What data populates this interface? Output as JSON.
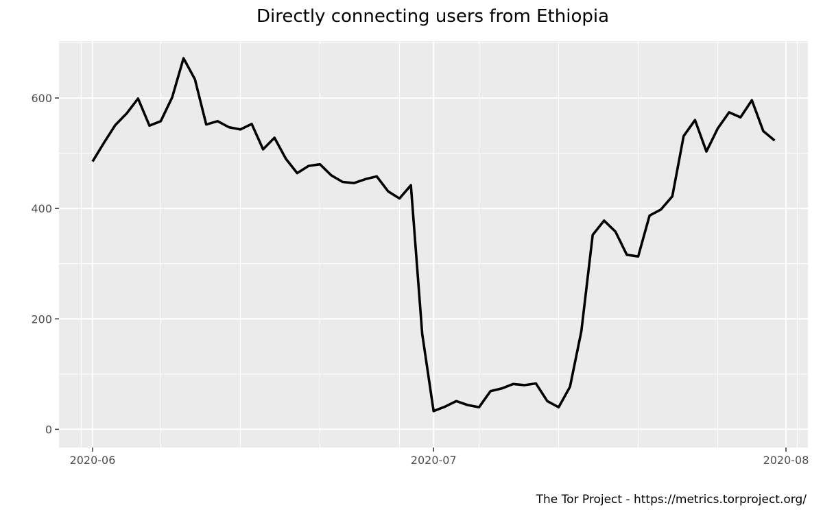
{
  "chart_data": {
    "type": "line",
    "title": "Directly connecting users from Ethiopia",
    "xlabel": "",
    "ylabel": "",
    "caption": "The Tor Project - https://metrics.torproject.org/",
    "x_ticks": [
      "2020-06-01",
      "2020-07-01",
      "2020-08-01"
    ],
    "x_tick_labels": [
      "2020-06",
      "2020-07",
      "2020-08"
    ],
    "y_ticks": [
      0,
      200,
      400,
      600
    ],
    "y_tick_labels": [
      "0",
      "200",
      "400",
      "600"
    ],
    "xlim": [
      "2019-05-30",
      "2020-08-03"
    ],
    "ylim": [
      -33,
      703
    ],
    "grid": true,
    "series": [
      {
        "color": "#000000",
        "x": [
          "2020-06-01",
          "2020-06-02",
          "2020-06-03",
          "2020-06-04",
          "2020-06-05",
          "2020-06-06",
          "2020-06-07",
          "2020-06-08",
          "2020-06-09",
          "2020-06-10",
          "2020-06-11",
          "2020-06-12",
          "2020-06-13",
          "2020-06-14",
          "2020-06-15",
          "2020-06-16",
          "2020-06-17",
          "2020-06-18",
          "2020-06-19",
          "2020-06-20",
          "2020-06-21",
          "2020-06-22",
          "2020-06-23",
          "2020-06-24",
          "2020-06-25",
          "2020-06-26",
          "2020-06-27",
          "2020-06-28",
          "2020-06-29",
          "2020-06-30",
          "2020-07-01",
          "2020-07-02",
          "2020-07-03",
          "2020-07-04",
          "2020-07-05",
          "2020-07-06",
          "2020-07-07",
          "2020-07-08",
          "2020-07-09",
          "2020-07-10",
          "2020-07-11",
          "2020-07-12",
          "2020-07-13",
          "2020-07-14",
          "2020-07-15",
          "2020-07-16",
          "2020-07-17",
          "2020-07-18",
          "2020-07-19",
          "2020-07-20",
          "2020-07-21",
          "2020-07-22",
          "2020-07-23",
          "2020-07-24",
          "2020-07-25",
          "2020-07-26",
          "2020-07-27",
          "2020-07-28",
          "2020-07-29",
          "2020-07-30",
          "2020-07-31"
        ],
        "values": [
          485,
          519,
          551,
          572,
          599,
          550,
          558,
          601,
          672,
          634,
          552,
          558,
          547,
          543,
          553,
          507,
          528,
          490,
          464,
          477,
          480,
          460,
          448,
          446,
          453,
          458,
          431,
          418,
          442,
          173,
          33,
          41,
          51,
          44,
          40,
          69,
          74,
          82,
          80,
          83,
          51,
          40,
          77,
          178,
          352,
          378,
          358,
          316,
          313,
          387,
          398,
          422,
          531,
          560,
          503,
          545,
          574,
          565,
          596,
          540,
          523
        ]
      }
    ]
  }
}
